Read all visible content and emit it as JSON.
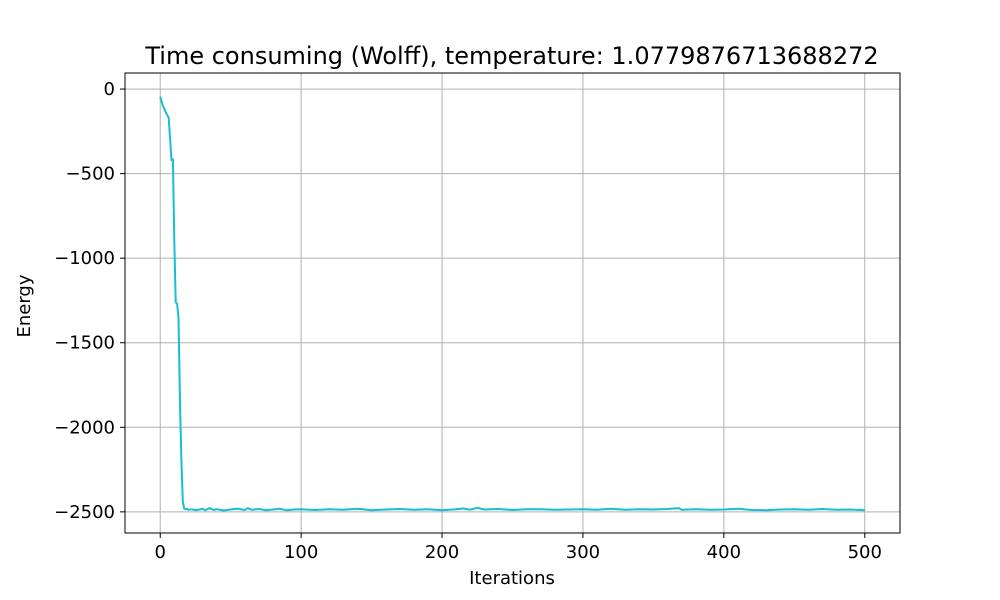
{
  "chart_data": {
    "type": "line",
    "title": "Time consuming (Wolff), temperature: 1.0779876713688272",
    "xlabel": "Iterations",
    "ylabel": "Energy",
    "xlim": [
      -25,
      525
    ],
    "ylim": [
      -2625,
      95
    ],
    "xticks": [
      0,
      100,
      200,
      300,
      400,
      500
    ],
    "yticks": [
      0,
      -500,
      -1000,
      -1500,
      -2000,
      -2500
    ],
    "xtick_labels": [
      "0",
      "100",
      "200",
      "300",
      "400",
      "500"
    ],
    "ytick_labels": [
      "0",
      "−500",
      "−1000",
      "−1500",
      "−2000",
      "−2500"
    ],
    "grid": true,
    "line_color": "#17becf",
    "series": [
      {
        "x": [
          0,
          2,
          4,
          6,
          8,
          9,
          10,
          11,
          12,
          13,
          14,
          15,
          16,
          17,
          18,
          19,
          20,
          22,
          25,
          28,
          30,
          32,
          35,
          38,
          40,
          45,
          50,
          55,
          60,
          62,
          65,
          70,
          75,
          80,
          85,
          90,
          95,
          100,
          110,
          120,
          130,
          140,
          150,
          160,
          170,
          180,
          190,
          200,
          210,
          215,
          220,
          225,
          230,
          240,
          250,
          260,
          270,
          280,
          290,
          300,
          310,
          320,
          330,
          340,
          350,
          360,
          368,
          370,
          380,
          390,
          400,
          410,
          420,
          430,
          440,
          450,
          460,
          470,
          480,
          490,
          500
        ],
        "y": [
          -45,
          -100,
          -140,
          -170,
          -420,
          -415,
          -900,
          -1260,
          -1270,
          -1350,
          -1850,
          -2200,
          -2440,
          -2480,
          -2485,
          -2482,
          -2488,
          -2485,
          -2490,
          -2486,
          -2482,
          -2490,
          -2478,
          -2489,
          -2484,
          -2492,
          -2486,
          -2481,
          -2489,
          -2478,
          -2488,
          -2483,
          -2490,
          -2486,
          -2482,
          -2491,
          -2486,
          -2484,
          -2489,
          -2485,
          -2487,
          -2482,
          -2490,
          -2486,
          -2483,
          -2488,
          -2485,
          -2490,
          -2484,
          -2480,
          -2487,
          -2476,
          -2486,
          -2483,
          -2489,
          -2485,
          -2484,
          -2488,
          -2486,
          -2484,
          -2488,
          -2482,
          -2487,
          -2485,
          -2486,
          -2483,
          -2478,
          -2488,
          -2485,
          -2487,
          -2486,
          -2482,
          -2489,
          -2490,
          -2486,
          -2485,
          -2487,
          -2483,
          -2488,
          -2486,
          -2490
        ]
      }
    ]
  }
}
